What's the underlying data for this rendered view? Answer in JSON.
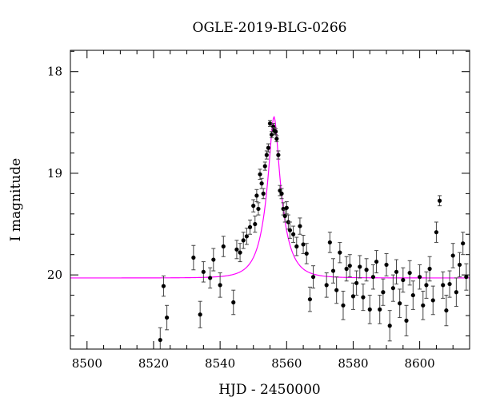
{
  "chart_data": {
    "type": "scatter",
    "title": "OGLE-2019-BLG-0266",
    "xlabel": "HJD - 2450000",
    "ylabel": "I magnitude",
    "xlim": [
      8495,
      8615
    ],
    "ylim": [
      20.73,
      17.79
    ],
    "y_inverted": true,
    "xticks": [
      8500,
      8520,
      8540,
      8560,
      8580,
      8600
    ],
    "yticks": [
      18,
      19,
      20
    ],
    "grid": false,
    "colors": {
      "points": "#000000",
      "model": "#ff00ff"
    },
    "model": {
      "name": "",
      "t0": 8556.2,
      "baseline": 20.03,
      "peak_mag": 18.46,
      "tE": 5.0
    },
    "series": [
      {
        "x": [
          8522,
          8523,
          8524,
          8532,
          8534,
          8535,
          8537,
          8538,
          8540,
          8541,
          8544,
          8545,
          8546,
          8547,
          8548,
          8549,
          8550,
          8550.5,
          8551,
          8551.5,
          8552,
          8552.5,
          8553,
          8553.5,
          8554,
          8554.5,
          8555,
          8555.5,
          8556,
          8556.3,
          8556.7,
          8557,
          8557.5,
          8558,
          8558.5,
          8559,
          8559.5,
          8560,
          8560.5,
          8561,
          8562,
          8563,
          8564,
          8565,
          8566,
          8567,
          8568,
          8572,
          8573,
          8574,
          8575,
          8576,
          8577,
          8578,
          8579,
          8580,
          8581,
          8582,
          8583,
          8584,
          8585,
          8586,
          8587,
          8588,
          8589,
          8590,
          8591,
          8592,
          8593,
          8594,
          8595,
          8596,
          8597,
          8598,
          8600,
          8601,
          8602,
          8603,
          8604,
          8605,
          8606,
          8607,
          8608,
          8609,
          8610,
          8611,
          8612,
          8613,
          8614
        ],
        "y": [
          20.64,
          20.11,
          20.42,
          19.83,
          20.39,
          19.97,
          20.03,
          19.85,
          20.1,
          19.72,
          20.27,
          19.75,
          19.78,
          19.66,
          19.62,
          19.53,
          19.32,
          19.5,
          19.22,
          19.35,
          19.01,
          19.1,
          19.2,
          18.93,
          18.82,
          18.75,
          18.51,
          18.62,
          18.54,
          18.58,
          18.59,
          18.66,
          18.82,
          19.17,
          19.2,
          19.35,
          19.42,
          19.34,
          19.48,
          19.56,
          19.6,
          19.72,
          19.52,
          19.7,
          19.79,
          20.24,
          20.02,
          20.1,
          19.68,
          19.96,
          20.15,
          19.78,
          20.3,
          19.94,
          19.91,
          20.21,
          20.08,
          19.92,
          20.22,
          19.95,
          20.34,
          20.02,
          19.87,
          20.34,
          20.17,
          19.9,
          20.5,
          20.13,
          19.97,
          20.28,
          20.05,
          20.45,
          19.98,
          20.2,
          20.02,
          20.3,
          20.1,
          19.94,
          20.25,
          19.58,
          19.27,
          20.1,
          20.35,
          20.09,
          19.81,
          20.17,
          19.9,
          19.69,
          20.02
        ],
        "err": [
          0.12,
          0.1,
          0.12,
          0.12,
          0.13,
          0.1,
          0.1,
          0.11,
          0.12,
          0.1,
          0.12,
          0.09,
          0.09,
          0.08,
          0.08,
          0.07,
          0.06,
          0.08,
          0.06,
          0.06,
          0.05,
          0.05,
          0.05,
          0.04,
          0.04,
          0.04,
          0.03,
          0.03,
          0.03,
          0.03,
          0.03,
          0.03,
          0.04,
          0.05,
          0.05,
          0.06,
          0.06,
          0.06,
          0.07,
          0.08,
          0.08,
          0.09,
          0.08,
          0.09,
          0.1,
          0.12,
          0.11,
          0.12,
          0.1,
          0.12,
          0.13,
          0.1,
          0.14,
          0.12,
          0.11,
          0.13,
          0.12,
          0.11,
          0.13,
          0.11,
          0.14,
          0.12,
          0.11,
          0.14,
          0.13,
          0.11,
          0.15,
          0.13,
          0.12,
          0.14,
          0.12,
          0.15,
          0.12,
          0.14,
          0.12,
          0.14,
          0.13,
          0.12,
          0.14,
          0.1,
          0.05,
          0.13,
          0.15,
          0.13,
          0.12,
          0.14,
          0.12,
          0.11,
          0.13
        ]
      }
    ]
  }
}
